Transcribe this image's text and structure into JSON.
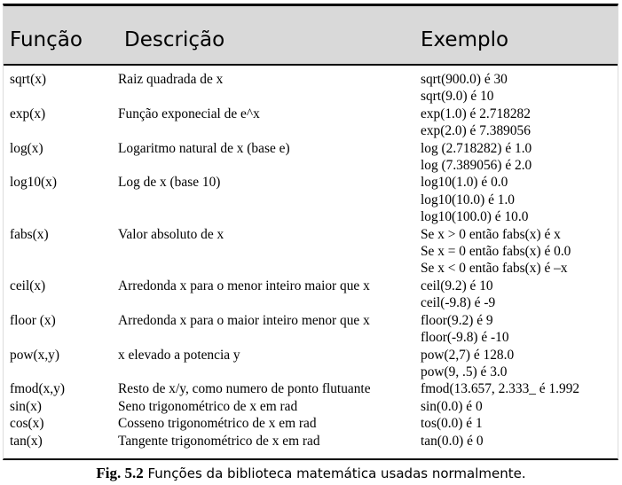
{
  "table": {
    "headers": {
      "function": "Função",
      "description": "Descrição",
      "example": "Exemplo"
    },
    "rows": [
      {
        "function": "sqrt(x)",
        "description": "Raiz quadrada de x",
        "examples": [
          "sqrt(900.0) é 30",
          "sqrt(9.0) é 10"
        ]
      },
      {
        "function": "exp(x)",
        "description": "Função exponecial de e^x",
        "examples": [
          "exp(1.0) é 2.718282",
          "exp(2.0) é 7.389056"
        ]
      },
      {
        "function": "log(x)",
        "description": "Logaritmo natural de x (base e)",
        "examples": [
          "log (2.718282) é 1.0",
          "log (7.389056) é 2.0"
        ]
      },
      {
        "function": "log10(x)",
        "description": "Log de x (base 10)",
        "examples": [
          "log10(1.0) é 0.0",
          "log10(10.0) é 1.0",
          "log10(100.0) é 10.0"
        ]
      },
      {
        "function": "fabs(x)",
        "description": "Valor absoluto de x",
        "examples": [
          "Se x > 0 então fabs(x) é x",
          "Se x = 0 então fabs(x) é 0.0",
          "Se x < 0 então fabs(x) é –x"
        ]
      },
      {
        "function": "ceil(x)",
        "description": "Arredonda x para o menor inteiro maior que x",
        "examples": [
          "ceil(9.2) é 10",
          "ceil(-9.8) é -9"
        ]
      },
      {
        "function": "floor (x)",
        "description": "Arredonda x para o maior inteiro menor que x",
        "examples": [
          "floor(9.2) é 9",
          "floor(-9.8) é -10"
        ]
      },
      {
        "function": "pow(x,y)",
        "description": "x elevado a potencia y",
        "examples": [
          "pow(2,7) é 128.0",
          "pow(9, .5) é 3.0"
        ]
      },
      {
        "function": "fmod(x,y)",
        "description": "Resto de x/y, como numero de ponto flutuante",
        "examples": [
          "fmod(13.657, 2.333_ é 1.992"
        ]
      },
      {
        "function": "sin(x)",
        "description": "Seno trigonométrico de x em rad",
        "examples": [
          "sin(0.0) é 0"
        ]
      },
      {
        "function": "cos(x)",
        "description": "Cosseno trigonométrico de x em rad",
        "examples": [
          "tos(0.0) é 1"
        ]
      },
      {
        "function": "tan(x)",
        "description": "Tangente trigonométrico de x em rad",
        "examples": [
          "tan(0.0) é 0"
        ]
      }
    ]
  },
  "caption": {
    "label": "Fig. 5.2",
    "text": " Funções da biblioteca matemática usadas normalmente."
  }
}
